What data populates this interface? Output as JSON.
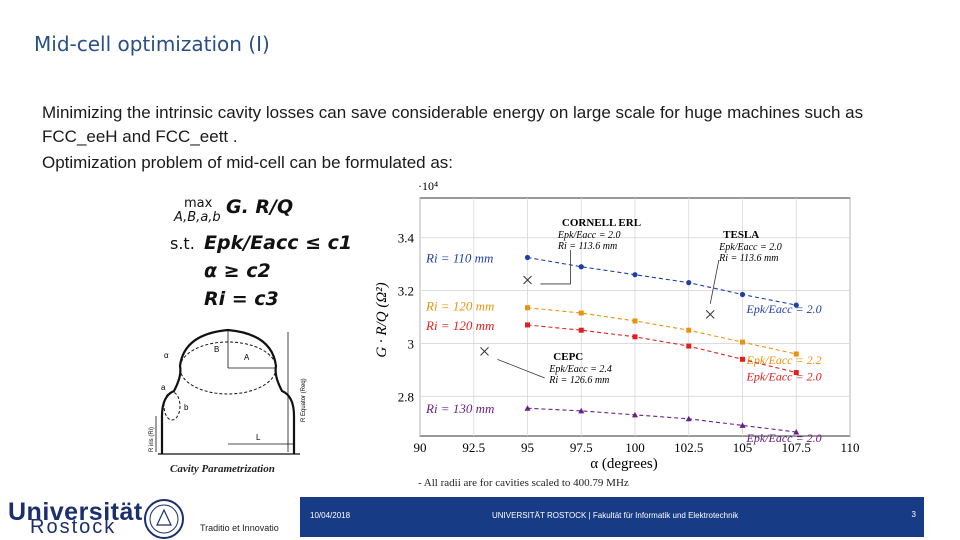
{
  "slide": {
    "title": "Mid-cell optimization (I)",
    "bullets": [
      "Minimizing the intrinsic cavity losses can save considerable energy on large scale for huge machines such as",
      "FCC_eeH and FCC_eett .",
      "Optimization problem of mid-cell can be formulated as:"
    ],
    "formula": {
      "max_label": "max",
      "max_sub": "A,B,a,b",
      "objective": "G. R/Q",
      "st_label": "s.t.",
      "c1": "Epk/Eacc ≤ c1",
      "c2": "α ≥ c2",
      "c3": "Ri = c3"
    },
    "cavity": {
      "caption": "Cavity Parametrization",
      "labels": [
        "B",
        "A",
        "α",
        "a",
        "b",
        "L",
        "R iris (Ri)",
        "R Equator (Req)"
      ]
    },
    "footnote": "- All radii are for cavities scaled to 400.79 MHz",
    "footer": {
      "date": "10/04/2018",
      "org": "UNIVERSITÄT ROSTOCK | Fakultät für Informatik und Elektrotechnik",
      "page": "3"
    },
    "logo": {
      "line1": "Universität",
      "line2": "Rostock",
      "motto": "Traditio et Innovatio"
    }
  },
  "chart_data": {
    "type": "line",
    "xlabel": "α (degrees)",
    "ylabel": "G · R/Q (Ω²)",
    "exponent_label": "·10⁴",
    "xlim": [
      90,
      110
    ],
    "ylim": [
      26500,
      35500
    ],
    "xticks": [
      90,
      92.5,
      95,
      97.5,
      100,
      102.5,
      105,
      107.5,
      110
    ],
    "xtick_labels": [
      "90",
      "92.5",
      "95",
      "97.5",
      "100",
      "102.5",
      "105",
      "107.5",
      "110"
    ],
    "yticks": [
      28000,
      30000,
      32000,
      34000
    ],
    "ytick_labels": [
      "2.8",
      "3",
      "3.2",
      "3.4"
    ],
    "series": [
      {
        "left_label": "Ri = 110 mm",
        "right_label": "Epk/Eacc = 2.0",
        "color": "#1f3fa6",
        "marker": "circle",
        "x": [
          95,
          97.5,
          100,
          102.5,
          105,
          107.5
        ],
        "y": [
          33250,
          32900,
          32600,
          32300,
          31850,
          31450
        ]
      },
      {
        "left_label": "Ri = 120 mm",
        "right_label": "Epk/Eacc = 2.2",
        "color": "#e8920f",
        "marker": "square",
        "x": [
          95,
          97.5,
          100,
          102.5,
          105,
          107.5
        ],
        "y": [
          31350,
          31150,
          30850,
          30500,
          30050,
          29600
        ]
      },
      {
        "left_label": "Ri = 120 mm",
        "right_label": "Epk/Eacc = 2.0",
        "color": "#e0201f",
        "marker": "square",
        "x": [
          95,
          97.5,
          100,
          102.5,
          105,
          107.5
        ],
        "y": [
          30700,
          30500,
          30250,
          29900,
          29400,
          28900
        ]
      },
      {
        "left_label": "Ri = 130 mm",
        "right_label": "Epk/Eacc = 2.0",
        "color": "#6a1f86",
        "marker": "triangle",
        "x": [
          95,
          97.5,
          100,
          102.5,
          105,
          107.5
        ],
        "y": [
          27550,
          27450,
          27300,
          27150,
          26900,
          26650
        ]
      }
    ],
    "reference_points": [
      {
        "x": 95,
        "y": 32400,
        "name": "CORNELL ERL",
        "lines": [
          "Epk/Eacc = 2.0",
          "Ri = 113.6 mm"
        ]
      },
      {
        "x": 103.5,
        "y": 31100,
        "name": "TESLA",
        "lines": [
          "Epk/Eacc = 2.0",
          "Ri = 113.6 mm"
        ]
      },
      {
        "x": 93,
        "y": 29700,
        "name": "CEPC",
        "lines": [
          "Epk/Eacc = 2.4",
          "Ri = 126.6 mm"
        ]
      }
    ]
  }
}
